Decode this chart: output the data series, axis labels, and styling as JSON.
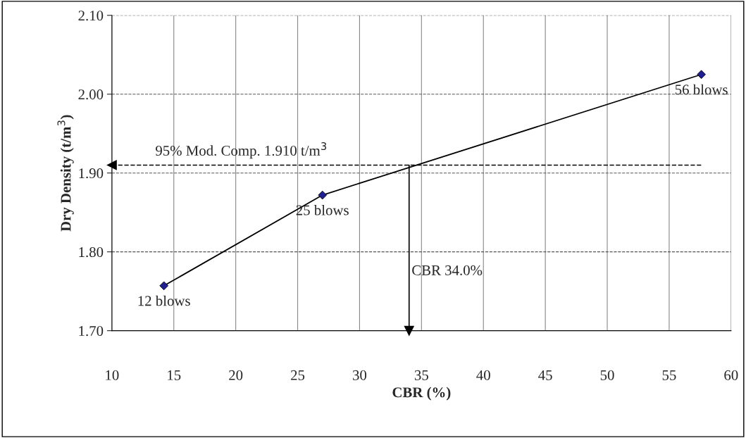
{
  "chart_data": {
    "type": "line",
    "xlabel": "CBR (%)",
    "ylabel": "Dry Density (t/m$^{3}$)",
    "x": [
      14.2,
      27.0,
      57.6
    ],
    "series": [
      {
        "color": "#000000",
        "values": [
          1.757,
          1.872,
          2.025
        ]
      }
    ],
    "marker": "diamond",
    "line_style": "solid",
    "xlim": [
      10,
      60
    ],
    "xticks": [
      10,
      15,
      20,
      25,
      30,
      35,
      40,
      45,
      50,
      55,
      60
    ],
    "ylim": [
      1.7,
      2.1
    ],
    "yticks": [
      {
        "value": 1.7,
        "label": "1.70"
      },
      {
        "value": 1.8,
        "label": "1.80"
      },
      {
        "value": 1.9,
        "label": "1.90"
      },
      {
        "value": 2.0,
        "label": "2.00"
      },
      {
        "value": 2.1,
        "label": "2.10"
      }
    ],
    "grid": true,
    "ref_lines": [
      {
        "axis": "y",
        "value": 1.91,
        "label": "95% Mod. Comp. 1.910 t/m$^{3}$",
        "line_style": "dashed",
        "color": "#000000"
      },
      {
        "axis": "x",
        "value": 34.0,
        "label": "CBR 34.0%",
        "line_style": "solid",
        "color": "#000000"
      }
    ],
    "annotations": [
      {
        "text": "12 blows",
        "x": 14.2,
        "y": 1.757
      },
      {
        "text": "25 blows",
        "x": 27.0,
        "y": 1.872
      },
      {
        "text": "56 blows",
        "x": 57.6,
        "y": 2.025
      }
    ]
  }
}
